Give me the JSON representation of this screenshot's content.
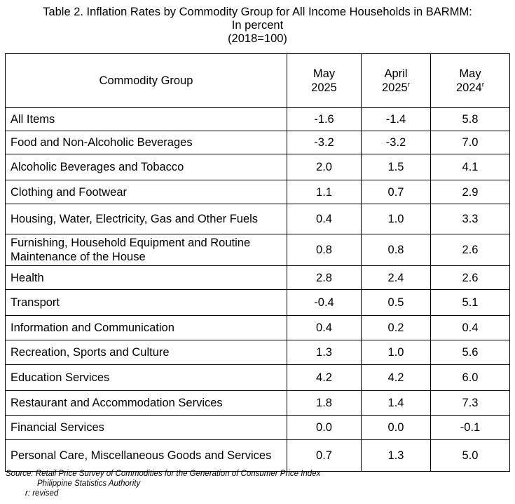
{
  "title": {
    "line1": "Table 2. Inflation Rates by Commodity Group for All Income Households in BARMM:",
    "line2": "In percent",
    "line3": "(2018=100)"
  },
  "table": {
    "headers": {
      "group": "Commodity Group",
      "col1": {
        "line1": "May",
        "line2": "2025",
        "sup": ""
      },
      "col2": {
        "line1": "April",
        "line2": "2025",
        "sup": "r"
      },
      "col3": {
        "line1": "May",
        "line2": "2024",
        "sup": "r"
      }
    },
    "rows": [
      {
        "name": "All Items",
        "may2025": "-1.6",
        "apr2025": "-1.4",
        "may2024": "5.8"
      },
      {
        "name": "Food and Non-Alcoholic Beverages",
        "may2025": "-3.2",
        "apr2025": "-3.2",
        "may2024": "7.0"
      },
      {
        "name": "Alcoholic Beverages and Tobacco",
        "may2025": "2.0",
        "apr2025": "1.5",
        "may2024": "4.1"
      },
      {
        "name": "Clothing and Footwear",
        "may2025": "1.1",
        "apr2025": "0.7",
        "may2024": "2.9"
      },
      {
        "name": "Housing, Water, Electricity, Gas and Other Fuels",
        "may2025": "0.4",
        "apr2025": "1.0",
        "may2024": "3.3"
      },
      {
        "name": "Furnishing, Household Equipment and Routine Maintenance of the House",
        "may2025": "0.8",
        "apr2025": "0.8",
        "may2024": "2.6"
      },
      {
        "name": "Health",
        "may2025": "2.8",
        "apr2025": "2.4",
        "may2024": "2.6"
      },
      {
        "name": "Transport",
        "may2025": "-0.4",
        "apr2025": "0.5",
        "may2024": "5.1"
      },
      {
        "name": "Information and Communication",
        "may2025": "0.4",
        "apr2025": "0.2",
        "may2024": "0.4"
      },
      {
        "name": "Recreation, Sports and Culture",
        "may2025": "1.3",
        "apr2025": "1.0",
        "may2024": "5.6"
      },
      {
        "name": "Education Services",
        "may2025": "4.2",
        "apr2025": "4.2",
        "may2024": "6.0"
      },
      {
        "name": "Restaurant and Accommodation Services",
        "may2025": "1.8",
        "apr2025": "1.4",
        "may2024": "7.3"
      },
      {
        "name": "Financial Services",
        "may2025": "0.0",
        "apr2025": "0.0",
        "may2024": "-0.1"
      },
      {
        "name": "Personal Care, Miscellaneous Goods and Services",
        "may2025": "0.7",
        "apr2025": "1.3",
        "may2024": "5.0"
      }
    ]
  },
  "notes": {
    "source": "Source: Retail Price Survey of Commodities for the Generation of Consumer Price Index",
    "agency": "Philippine Statistics Authority",
    "revised": "r: revised"
  }
}
